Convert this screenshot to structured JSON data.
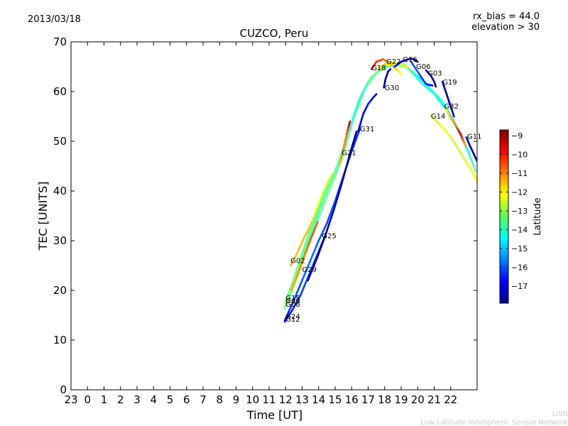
{
  "header": {
    "date": "2013/03/18",
    "rx_bias": "rx_bias = 44.0",
    "elevation": "elevation > 30"
  },
  "footer": {
    "org_short": "LISN",
    "org_full": "Low-Latitude Ionospheric Sensor Network"
  },
  "chart_data": {
    "type": "line",
    "title": "CUZCO, Peru",
    "xlabel": "Time [UT]",
    "ylabel": "TEC [UNITS]",
    "xlim": [
      -1,
      23.6
    ],
    "ylim": [
      0,
      70
    ],
    "x_ticks": [
      -1,
      0,
      1,
      2,
      3,
      4,
      5,
      6,
      7,
      8,
      9,
      10,
      11,
      12,
      13,
      14,
      15,
      16,
      17,
      18,
      19,
      20,
      21,
      22
    ],
    "x_tick_labels": [
      "23",
      "0",
      "1",
      "2",
      "3",
      "4",
      "5",
      "6",
      "7",
      "8",
      "9",
      "10",
      "11",
      "12",
      "13",
      "14",
      "15",
      "16",
      "17",
      "18",
      "19",
      "20",
      "21",
      "22"
    ],
    "y_ticks": [
      0,
      10,
      20,
      30,
      40,
      50,
      60,
      70
    ],
    "y_tick_labels": [
      "0",
      "10",
      "20",
      "30",
      "40",
      "50",
      "60",
      "70"
    ],
    "colorbar": {
      "label": "Latitude",
      "range": [
        -17.9,
        -8.7
      ],
      "ticks": [
        -9,
        -10,
        -11,
        -12,
        -13,
        -14,
        -15,
        -16,
        -17
      ],
      "tick_labels": [
        "−9",
        "−10",
        "−11",
        "−12",
        "−13",
        "−14",
        "−15",
        "−16",
        "−17"
      ]
    },
    "series": [
      {
        "name": "G15",
        "label_at": [
          12.0,
          18.0
        ],
        "points": [
          [
            11.95,
            17.5,
            -13.2
          ],
          [
            12.3,
            20.5,
            -13.5
          ],
          [
            12.8,
            25.5,
            -13.4
          ],
          [
            13.4,
            31.5,
            -13.6
          ],
          [
            14.0,
            36.5,
            -13.8
          ],
          [
            14.6,
            41.5,
            -13.5
          ],
          [
            15.3,
            46.0,
            -13.2
          ],
          [
            16.0,
            54.0,
            -14.0
          ],
          [
            16.6,
            59.5,
            -13.8
          ],
          [
            17.2,
            63.0,
            -13.5
          ],
          [
            17.8,
            64.5,
            -13.2
          ],
          [
            18.4,
            65.2,
            -13.4
          ],
          [
            19.0,
            65.4,
            -13.3
          ],
          [
            19.5,
            64.5,
            -13.5
          ],
          [
            20.2,
            62.5,
            -14.5
          ],
          [
            20.8,
            60.5,
            -14.0
          ],
          [
            21.5,
            58.0,
            -14.2
          ],
          [
            22.2,
            54.0,
            -14.8
          ],
          [
            22.8,
            50.0,
            -14.5
          ],
          [
            23.4,
            45.0,
            -13.8
          ]
        ]
      },
      {
        "name": "G09",
        "label_at": [
          12.0,
          17.4
        ],
        "points": [
          [
            11.95,
            16.8,
            -12.8
          ],
          [
            12.4,
            20.0,
            -13.0
          ],
          [
            12.9,
            24.5,
            -12.9
          ],
          [
            13.5,
            30.5,
            -13.3
          ],
          [
            14.1,
            35.5,
            -13.5
          ],
          [
            14.7,
            40.5,
            -13.3
          ],
          [
            15.4,
            46.5,
            -13.6
          ],
          [
            16.1,
            54.5,
            -13.9
          ],
          [
            16.8,
            60.5,
            -13.6
          ],
          [
            17.5,
            63.8,
            -13.2
          ],
          [
            18.0,
            65.0,
            -13.4
          ],
          [
            18.6,
            65.8,
            -13.1
          ],
          [
            19.2,
            65.5,
            -13.0
          ],
          [
            19.6,
            64.0,
            -13.6
          ],
          [
            20.3,
            61.5,
            -14.2
          ],
          [
            21.0,
            59.5,
            -14.0
          ],
          [
            21.7,
            56.5,
            -14.6
          ],
          [
            22.4,
            52.5,
            -14.9
          ],
          [
            23.0,
            48.5,
            -14.3
          ],
          [
            23.5,
            44.0,
            -13.5
          ]
        ]
      },
      {
        "name": "G08",
        "label_at": [
          12.0,
          16.7
        ],
        "points": [
          [
            11.95,
            16.3,
            -13.4
          ],
          [
            12.5,
            21.0,
            -13.6
          ],
          [
            13.1,
            27.5,
            -13.5
          ],
          [
            13.7,
            33.0,
            -13.8
          ],
          [
            14.3,
            38.5,
            -13.7
          ],
          [
            15.0,
            44.0,
            -13.5
          ],
          [
            15.7,
            50.5,
            -13.9
          ],
          [
            16.4,
            58.0,
            -14.1
          ],
          [
            17.0,
            62.0,
            -13.7
          ],
          [
            17.6,
            64.0,
            -13.4
          ],
          [
            18.2,
            65.0,
            -13.6
          ],
          [
            18.8,
            65.3,
            -13.2
          ],
          [
            19.4,
            64.8,
            -13.8
          ],
          [
            20.0,
            63.0,
            -14.3
          ],
          [
            20.6,
            61.5,
            -14.1
          ]
        ]
      },
      {
        "name": "G02",
        "label_at": [
          12.3,
          25.5
        ],
        "points": [
          [
            12.3,
            25.0,
            -11.3
          ],
          [
            12.7,
            27.5,
            -11.6
          ],
          [
            13.1,
            30.5,
            -11.5
          ],
          [
            13.5,
            33.0,
            -11.7
          ],
          [
            13.9,
            36.5,
            -12.1
          ],
          [
            14.3,
            40.0,
            -12.6
          ],
          [
            14.8,
            43.5,
            -12.4
          ]
        ]
      },
      {
        "name": "G29",
        "label_at": [
          13.0,
          23.7
        ],
        "points": [
          [
            12.35,
            20.0,
            -11.5
          ],
          [
            12.7,
            23.0,
            -11.2
          ],
          [
            13.2,
            27.5,
            -10.9
          ],
          [
            13.6,
            31.0,
            -10.5
          ],
          [
            13.95,
            33.8,
            -10.8
          ]
        ]
      },
      {
        "name": "G24",
        "label_at": [
          12.0,
          14.3
        ],
        "points": [
          [
            11.95,
            14.0,
            -16.4
          ],
          [
            12.5,
            18.0,
            -16.2
          ],
          [
            13.0,
            22.0,
            -15.9
          ],
          [
            13.5,
            26.0,
            -15.7
          ],
          [
            14.0,
            30.0,
            -15.9
          ],
          [
            14.5,
            33.5,
            -16.1
          ],
          [
            15.0,
            38.0,
            -16.0
          ],
          [
            15.5,
            43.0,
            -16.2
          ],
          [
            16.0,
            48.0,
            -16.4
          ],
          [
            16.5,
            52.5,
            -16.3
          ]
        ]
      },
      {
        "name": "G12",
        "label_at": [
          12.0,
          13.7
        ],
        "points": [
          [
            11.95,
            13.7,
            -16.8
          ],
          [
            12.4,
            16.0,
            -16.5
          ],
          [
            12.9,
            19.0,
            -16.3
          ],
          [
            13.4,
            23.0,
            -16.1
          ],
          [
            13.9,
            27.0,
            -16.4
          ],
          [
            14.4,
            31.0,
            -16.6
          ]
        ]
      },
      {
        "name": "G25",
        "label_at": [
          14.2,
          30.5
        ],
        "points": [
          [
            13.35,
            22.0,
            -17.6
          ],
          [
            13.9,
            26.5,
            -17.7
          ],
          [
            14.4,
            31.0,
            -17.8
          ],
          [
            14.9,
            36.0,
            -17.6
          ],
          [
            15.4,
            41.5,
            -17.7
          ],
          [
            15.9,
            47.5,
            -17.8
          ],
          [
            16.3,
            52.0,
            -17.7
          ]
        ]
      },
      {
        "name": "G21",
        "label_at": [
          15.4,
          47.2
        ],
        "points": [
          [
            15.3,
            45.5,
            -11.4
          ],
          [
            15.5,
            48.5,
            -11.1
          ],
          [
            15.7,
            51.5,
            -10.8
          ],
          [
            15.9,
            54.0,
            -9.3
          ]
        ]
      },
      {
        "name": "G31",
        "label_at": [
          16.5,
          52.0
        ],
        "points": [
          [
            16.4,
            52.0,
            -17.2
          ],
          [
            16.7,
            55.5,
            -16.8
          ],
          [
            17.0,
            57.5,
            -16.5
          ],
          [
            17.3,
            58.8,
            -16.7
          ],
          [
            17.5,
            59.5,
            -17.0
          ]
        ]
      },
      {
        "name": "G30",
        "label_at": [
          18.0,
          60.3
        ],
        "points": [
          [
            17.95,
            60.8,
            -17.5
          ],
          [
            18.05,
            62.5,
            -17.6
          ],
          [
            18.2,
            64.0,
            -17.4
          ],
          [
            18.35,
            64.5,
            -17.2
          ]
        ]
      },
      {
        "name": "G18",
        "label_at": [
          17.2,
          64.3
        ],
        "points": [
          [
            17.2,
            64.5,
            -9.2
          ],
          [
            17.5,
            66.0,
            -10.3
          ],
          [
            17.9,
            66.5,
            -10.6
          ],
          [
            18.3,
            65.8,
            -11.2
          ],
          [
            18.7,
            64.5,
            -11.8
          ],
          [
            19.0,
            63.5,
            -12.2
          ]
        ]
      },
      {
        "name": "G22",
        "label_at": [
          18.1,
          65.6
        ],
        "points": [
          [
            17.6,
            64.5,
            -11.8
          ],
          [
            18.0,
            65.5,
            -11.6
          ],
          [
            18.5,
            65.8,
            -11.8
          ],
          [
            19.0,
            65.5,
            -12.3
          ],
          [
            19.4,
            64.8,
            -12.5
          ]
        ]
      },
      {
        "name": "G16",
        "label_at": [
          19.1,
          66.0
        ],
        "points": [
          [
            18.6,
            65.0,
            -16.8
          ],
          [
            19.0,
            66.0,
            -17.3
          ],
          [
            19.4,
            66.5,
            -17.6
          ],
          [
            19.7,
            66.6,
            -17.8
          ],
          [
            20.0,
            66.0,
            -17.6
          ]
        ]
      },
      {
        "name": "G06",
        "label_at": [
          19.9,
          64.6
        ],
        "points": [
          [
            19.6,
            66.0,
            -16.2
          ],
          [
            19.9,
            64.5,
            -15.8
          ],
          [
            20.2,
            63.0,
            -16.1
          ],
          [
            20.5,
            61.5,
            -16.4
          ],
          [
            20.9,
            61.2,
            -16.7
          ]
        ]
      },
      {
        "name": "G03",
        "label_at": [
          20.6,
          63.2
        ],
        "points": [
          [
            20.5,
            64.3,
            -17.8
          ],
          [
            20.8,
            63.2,
            -17.6
          ],
          [
            21.0,
            62.0,
            -17.4
          ],
          [
            21.1,
            61.0,
            -17.7
          ]
        ]
      },
      {
        "name": "G19",
        "label_at": [
          21.5,
          61.4
        ],
        "points": [
          [
            21.5,
            62.0,
            -17.7
          ],
          [
            21.8,
            59.0,
            -17.8
          ],
          [
            22.0,
            57.0,
            -17.6
          ],
          [
            22.2,
            55.0,
            -17.3
          ]
        ]
      },
      {
        "name": "G32",
        "label_at": [
          21.6,
          56.6
        ],
        "points": [
          [
            21.7,
            56.5,
            -12.2
          ],
          [
            22.0,
            54.8,
            -11.5
          ],
          [
            22.3,
            53.2,
            -11.2
          ],
          [
            22.6,
            51.5,
            -9.5
          ],
          [
            22.9,
            49.0,
            -11.6
          ]
        ]
      },
      {
        "name": "G14",
        "label_at": [
          20.8,
          54.6
        ],
        "points": [
          [
            20.8,
            55.2,
            -12.3
          ],
          [
            21.2,
            53.8,
            -12.6
          ],
          [
            21.6,
            52.5,
            -12.2
          ],
          [
            22.0,
            50.8,
            -12.5
          ],
          [
            22.4,
            48.8,
            -12.8
          ],
          [
            22.8,
            46.5,
            -12.6
          ],
          [
            23.2,
            44.5,
            -12.2
          ],
          [
            23.6,
            42.0,
            -12.0
          ]
        ]
      },
      {
        "name": "G11",
        "label_at": [
          23.0,
          50.5
        ],
        "points": [
          [
            22.95,
            50.8,
            -17.6
          ],
          [
            23.15,
            49.2,
            -17.5
          ],
          [
            23.35,
            47.8,
            -17.7
          ],
          [
            23.6,
            46.0,
            -17.8
          ]
        ]
      }
    ]
  }
}
